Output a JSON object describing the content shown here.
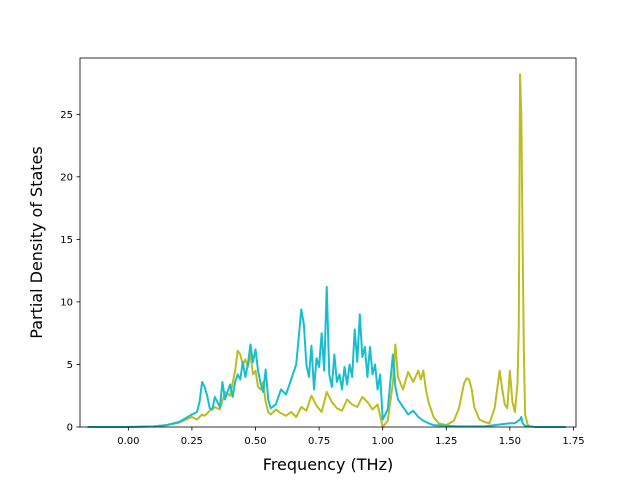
{
  "chart_data": {
    "type": "line",
    "title": "",
    "xlabel": "Frequency (THz)",
    "ylabel": "Partial Density of States",
    "xlim": [
      -0.19,
      1.76
    ],
    "ylim": [
      0,
      29.5
    ],
    "xticks": [
      0.0,
      0.25,
      0.5,
      0.75,
      1.0,
      1.25,
      1.5,
      1.75
    ],
    "xtick_labels": [
      "0.00",
      "0.25",
      "0.50",
      "0.75",
      "1.00",
      "1.25",
      "1.50",
      "1.75"
    ],
    "yticks": [
      0,
      5,
      10,
      15,
      20,
      25
    ],
    "ytick_labels": [
      "0",
      "5",
      "10",
      "15",
      "20",
      "25"
    ],
    "grid": false,
    "series": [
      {
        "color": "#bcbd22",
        "x": [
          -0.16,
          0.0,
          0.1,
          0.15,
          0.2,
          0.25,
          0.27,
          0.29,
          0.3,
          0.32,
          0.34,
          0.36,
          0.38,
          0.4,
          0.42,
          0.43,
          0.44,
          0.45,
          0.46,
          0.47,
          0.48,
          0.49,
          0.5,
          0.51,
          0.52,
          0.53,
          0.54,
          0.55,
          0.56,
          0.58,
          0.6,
          0.62,
          0.64,
          0.66,
          0.68,
          0.7,
          0.72,
          0.74,
          0.76,
          0.78,
          0.8,
          0.82,
          0.84,
          0.86,
          0.88,
          0.9,
          0.92,
          0.94,
          0.96,
          0.98,
          1.0,
          1.02,
          1.04,
          1.05,
          1.06,
          1.08,
          1.1,
          1.12,
          1.14,
          1.15,
          1.16,
          1.17,
          1.18,
          1.2,
          1.22,
          1.25,
          1.28,
          1.3,
          1.32,
          1.33,
          1.34,
          1.35,
          1.36,
          1.38,
          1.4,
          1.42,
          1.44,
          1.46,
          1.47,
          1.48,
          1.49,
          1.5,
          1.51,
          1.52,
          1.53,
          1.535,
          1.54,
          1.545,
          1.55,
          1.555,
          1.56,
          1.57,
          1.58
        ],
        "values": [
          0,
          0,
          0.05,
          0.15,
          0.35,
          0.8,
          0.6,
          1.0,
          0.9,
          1.3,
          1.6,
          1.4,
          2.8,
          2.5,
          4.5,
          6.1,
          5.8,
          5.0,
          5.4,
          4.8,
          5.9,
          4.2,
          4.5,
          3.2,
          3.0,
          3.6,
          2.0,
          1.2,
          1.0,
          1.4,
          1.1,
          0.9,
          1.2,
          0.8,
          1.6,
          1.3,
          2.5,
          1.7,
          1.2,
          2.8,
          2.0,
          1.5,
          1.3,
          2.2,
          1.8,
          1.6,
          2.4,
          2.0,
          1.4,
          1.8,
          0.0,
          0.5,
          3.5,
          6.6,
          4.0,
          3.0,
          4.4,
          3.6,
          4.5,
          3.8,
          4.5,
          3.0,
          2.0,
          0.8,
          0.3,
          0.15,
          0.5,
          1.5,
          3.5,
          3.9,
          3.8,
          3.0,
          1.6,
          0.6,
          0.4,
          0.3,
          1.5,
          4.5,
          3.0,
          1.8,
          1.5,
          4.5,
          2.0,
          1.2,
          3.5,
          8.0,
          28.2,
          25.0,
          15.0,
          6.0,
          1.0,
          0.2,
          0
        ]
      },
      {
        "color": "#17becf",
        "x": [
          -0.16,
          0.0,
          0.1,
          0.15,
          0.2,
          0.25,
          0.27,
          0.28,
          0.29,
          0.3,
          0.31,
          0.32,
          0.33,
          0.34,
          0.35,
          0.36,
          0.37,
          0.38,
          0.39,
          0.4,
          0.41,
          0.42,
          0.43,
          0.44,
          0.45,
          0.46,
          0.47,
          0.48,
          0.49,
          0.5,
          0.51,
          0.52,
          0.53,
          0.54,
          0.55,
          0.56,
          0.58,
          0.6,
          0.62,
          0.64,
          0.66,
          0.68,
          0.69,
          0.7,
          0.71,
          0.72,
          0.73,
          0.74,
          0.75,
          0.76,
          0.77,
          0.78,
          0.79,
          0.8,
          0.81,
          0.82,
          0.83,
          0.84,
          0.85,
          0.86,
          0.87,
          0.88,
          0.89,
          0.9,
          0.91,
          0.92,
          0.93,
          0.94,
          0.95,
          0.96,
          0.97,
          0.98,
          0.99,
          1.0,
          1.02,
          1.04,
          1.05,
          1.06,
          1.08,
          1.1,
          1.12,
          1.14,
          1.16,
          1.18,
          1.2,
          1.25,
          1.3,
          1.4,
          1.5,
          1.52,
          1.54,
          1.545,
          1.55,
          1.56,
          1.6,
          1.72
        ],
        "values": [
          0,
          0,
          0.05,
          0.15,
          0.4,
          1.0,
          1.2,
          2.0,
          3.6,
          3.2,
          2.5,
          1.5,
          1.4,
          2.4,
          2.0,
          1.6,
          3.6,
          2.2,
          2.8,
          3.4,
          2.4,
          3.6,
          4.2,
          3.8,
          5.2,
          4.0,
          5.0,
          6.6,
          5.2,
          6.2,
          4.5,
          3.5,
          2.8,
          4.6,
          2.2,
          1.5,
          1.8,
          3.0,
          2.6,
          3.8,
          5.0,
          9.4,
          8.2,
          5.0,
          4.0,
          6.5,
          3.0,
          5.5,
          4.8,
          7.5,
          4.5,
          11.2,
          4.2,
          3.2,
          5.8,
          3.6,
          4.2,
          3.0,
          4.8,
          3.4,
          5.0,
          4.0,
          7.8,
          5.2,
          9.0,
          5.6,
          6.4,
          4.0,
          6.4,
          4.2,
          5.0,
          3.0,
          4.2,
          0.6,
          1.4,
          5.8,
          3.2,
          2.2,
          1.6,
          1.0,
          1.3,
          0.8,
          0.5,
          0.3,
          0.15,
          0.1,
          0.05,
          0.05,
          0.3,
          0.3,
          0.6,
          0.8,
          0.3,
          0.1,
          0,
          0
        ]
      }
    ]
  }
}
